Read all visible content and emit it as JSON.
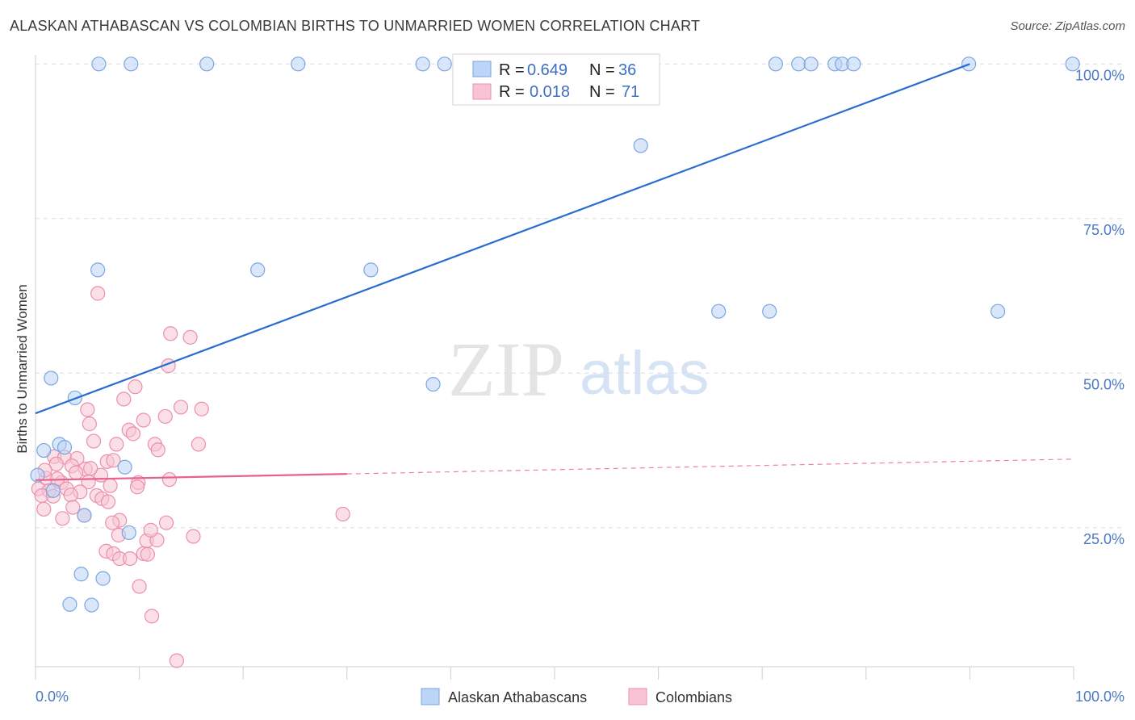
{
  "title": "ALASKAN ATHABASCAN VS COLOMBIAN BIRTHS TO UNMARRIED WOMEN CORRELATION CHART",
  "source": "Source: ZipAtlas.com",
  "watermark": {
    "zip": "ZIP",
    "atlas": "atlas"
  },
  "colors": {
    "blue_fill": "#bcd4f5",
    "blue_stroke": "#7aa6e0",
    "blue_line": "#2a6ccf",
    "pink_fill": "#f8c4d4",
    "pink_stroke": "#ec8fac",
    "pink_line": "#e8618c",
    "grid": "#dedede",
    "tick_text": "#4a78c2"
  },
  "legend": {
    "r_label": "R =",
    "n_label": "N =",
    "rows": [
      {
        "r": "0.649",
        "n": "36"
      },
      {
        "r": "0.018",
        "n": "71"
      }
    ]
  },
  "chart_data": {
    "type": "scatter",
    "title": "ALASKAN ATHABASCAN VS COLOMBIAN BIRTHS TO UNMARRIED WOMEN CORRELATION CHART",
    "xlabel": "",
    "ylabel": "Births to Unmarried Women",
    "xlim": [
      0,
      100
    ],
    "ylim": [
      0,
      102
    ],
    "x_tick_labels": [
      "0.0%",
      "100.0%"
    ],
    "y_ticks": [
      25,
      50,
      75,
      100
    ],
    "y_tick_labels": [
      "25.0%",
      "50.0%",
      "75.0%",
      "100.0%"
    ],
    "grid": true,
    "legend_position": "bottom-center",
    "series": [
      {
        "name": "Alaskan Athabascans",
        "r": 0.649,
        "n": 36,
        "trend": {
          "x0": 0,
          "y0": 43.5,
          "x1": 90,
          "y1": 100,
          "dashed_to": null
        },
        "points": [
          [
            6.1,
            100
          ],
          [
            9.2,
            100
          ],
          [
            16.5,
            100
          ],
          [
            25.3,
            100
          ],
          [
            37.3,
            100
          ],
          [
            39.4,
            100
          ],
          [
            71.3,
            100
          ],
          [
            73.5,
            100
          ],
          [
            74.7,
            100
          ],
          [
            77,
            100
          ],
          [
            77.7,
            100
          ],
          [
            78.8,
            100
          ],
          [
            89.9,
            100
          ],
          [
            99.9,
            100
          ],
          [
            58.3,
            86.8
          ],
          [
            6,
            66.7
          ],
          [
            21.4,
            66.7
          ],
          [
            32.3,
            66.7
          ],
          [
            65.8,
            60
          ],
          [
            70.7,
            60
          ],
          [
            92.7,
            60
          ],
          [
            1.5,
            49.2
          ],
          [
            3.8,
            46
          ],
          [
            38.3,
            48.2
          ],
          [
            0.2,
            33.5
          ],
          [
            0.8,
            37.5
          ],
          [
            2.3,
            38.5
          ],
          [
            2.8,
            38
          ],
          [
            8.6,
            34.8
          ],
          [
            1.7,
            31
          ],
          [
            4.7,
            27
          ],
          [
            9,
            24.2
          ],
          [
            4.4,
            17.5
          ],
          [
            6.5,
            16.8
          ],
          [
            3.3,
            12.6
          ],
          [
            5.4,
            12.5
          ]
        ]
      },
      {
        "name": "Colombians",
        "r": 0.018,
        "n": 71,
        "trend": {
          "x0": 0,
          "y0": 32.7,
          "x1": 30,
          "y1": 33.7,
          "dashed_to": {
            "x": 100,
            "y": 36.1
          }
        },
        "points": [
          [
            6,
            62.9
          ],
          [
            13,
            56.4
          ],
          [
            14.9,
            55.8
          ],
          [
            12.8,
            51.2
          ],
          [
            9.6,
            47.8
          ],
          [
            8.5,
            45.8
          ],
          [
            5,
            44.1
          ],
          [
            14,
            44.5
          ],
          [
            16,
            44.2
          ],
          [
            10.4,
            42.4
          ],
          [
            12.5,
            43
          ],
          [
            5.2,
            41.8
          ],
          [
            9,
            40.8
          ],
          [
            9.4,
            40.2
          ],
          [
            5.6,
            39
          ],
          [
            7.8,
            38.5
          ],
          [
            11.5,
            38.5
          ],
          [
            15.7,
            38.5
          ],
          [
            11.8,
            37.6
          ],
          [
            1.8,
            36.5
          ],
          [
            2.8,
            36.4
          ],
          [
            4,
            36.2
          ],
          [
            6.9,
            35.7
          ],
          [
            7.5,
            35.9
          ],
          [
            2,
            35.3
          ],
          [
            3.5,
            35
          ],
          [
            4.8,
            34.5
          ],
          [
            6.3,
            33.5
          ],
          [
            1,
            33
          ],
          [
            2.5,
            32.3
          ],
          [
            5.1,
            32.4
          ],
          [
            7.2,
            31.8
          ],
          [
            9.9,
            32.3
          ],
          [
            12.9,
            32.8
          ],
          [
            0.3,
            31.3
          ],
          [
            1.3,
            31
          ],
          [
            3,
            31.3
          ],
          [
            4.3,
            30.8
          ],
          [
            0.6,
            30.2
          ],
          [
            1.7,
            30.1
          ],
          [
            3.4,
            30.3
          ],
          [
            5.9,
            30.2
          ],
          [
            9.8,
            31.6
          ],
          [
            6.4,
            29.7
          ],
          [
            0.8,
            28
          ],
          [
            3.6,
            28.3
          ],
          [
            4.7,
            27
          ],
          [
            2.6,
            26.5
          ],
          [
            8.1,
            26.2
          ],
          [
            7.4,
            25.8
          ],
          [
            12.6,
            25.8
          ],
          [
            29.6,
            27.2
          ],
          [
            8,
            23.8
          ],
          [
            10.7,
            22.9
          ],
          [
            11.7,
            23
          ],
          [
            15.2,
            23.6
          ],
          [
            6.8,
            21.2
          ],
          [
            7.5,
            20.8
          ],
          [
            8.1,
            20
          ],
          [
            9.1,
            20
          ],
          [
            10.4,
            20.8
          ],
          [
            10.8,
            20.7
          ],
          [
            10,
            15.5
          ],
          [
            11.2,
            10.7
          ],
          [
            13.6,
            3.5
          ],
          [
            0.9,
            34.3
          ],
          [
            2.1,
            32.9
          ],
          [
            3.9,
            33.9
          ],
          [
            5.3,
            34.6
          ],
          [
            7,
            29.2
          ],
          [
            11.1,
            24.6
          ]
        ]
      }
    ]
  }
}
